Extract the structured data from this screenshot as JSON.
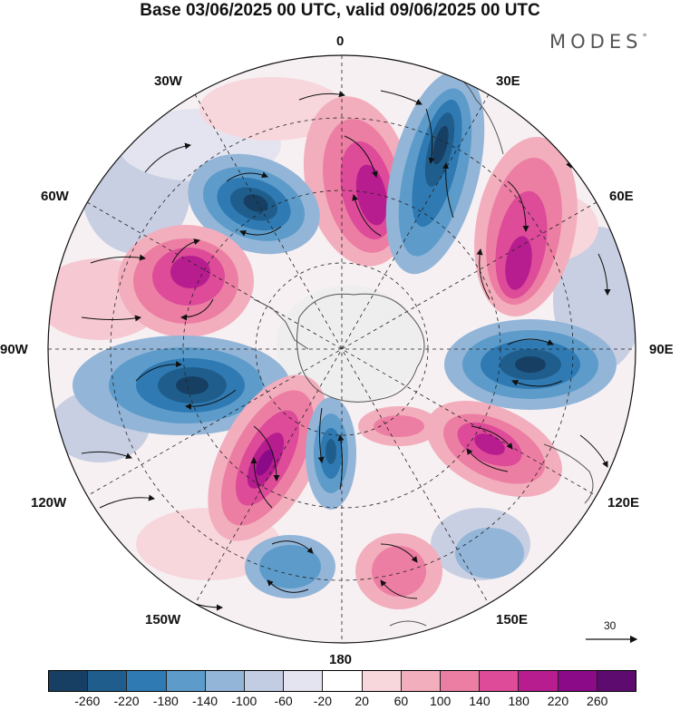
{
  "title": "Base 03/06/2025 00 UTC, valid 09/06/2025 00 UTC",
  "brand": "MODES",
  "brand_mark": "°",
  "map": {
    "projection": "south polar stereographic",
    "longitude_labels": {
      "top": "0",
      "top_right": "30E",
      "right_upper": "60E",
      "right": "90E",
      "right_lower": "120E",
      "bottom_right": "150E",
      "bottom": "180",
      "bottom_left": "150W",
      "left_lower": "120W",
      "left": "90W",
      "left_upper": "60W",
      "top_left": "30W"
    },
    "anomaly_centers": [
      {
        "type": "negative",
        "value": -260,
        "region": "south of Africa, ~20E"
      },
      {
        "type": "positive",
        "value": 240,
        "region": "~10E"
      },
      {
        "type": "negative",
        "value": -240,
        "region": "South Atlantic ~40W"
      },
      {
        "type": "positive",
        "value": 220,
        "region": "Drake Passage ~70W"
      },
      {
        "type": "positive",
        "value": 220,
        "region": "Indian Ocean ~50E"
      },
      {
        "type": "negative",
        "value": -240,
        "region": "~95E"
      },
      {
        "type": "positive",
        "value": 200,
        "region": "south of Australia ~120E"
      },
      {
        "type": "negative",
        "value": -240,
        "region": "South Pacific ~100W"
      },
      {
        "type": "positive",
        "value": 260,
        "region": "South Pacific ~130W"
      },
      {
        "type": "negative",
        "value": -200,
        "region": "Ross Sea ~170W"
      },
      {
        "type": "negative",
        "value": -140,
        "region": "~150W"
      },
      {
        "type": "positive",
        "value": 140,
        "region": "~170E"
      },
      {
        "type": "negative",
        "value": -100,
        "region": "Tasman Sea ~150E"
      }
    ]
  },
  "vector_scale": {
    "label": "30"
  },
  "colorbar": {
    "colors": [
      "#173f63",
      "#1f5e8c",
      "#2f7ab3",
      "#5d9cca",
      "#93b5d8",
      "#c2cde3",
      "#e4e4f0",
      "#ffffff",
      "#f8d7dc",
      "#f3aebd",
      "#ec7ea3",
      "#dd4b99",
      "#b71d8f",
      "#8b0a87",
      "#5e0b6f"
    ],
    "tick_labels": [
      "-260",
      "-220",
      "-180",
      "-140",
      "-100",
      "-60",
      "-20",
      "20",
      "60",
      "100",
      "140",
      "180",
      "220",
      "260"
    ]
  }
}
